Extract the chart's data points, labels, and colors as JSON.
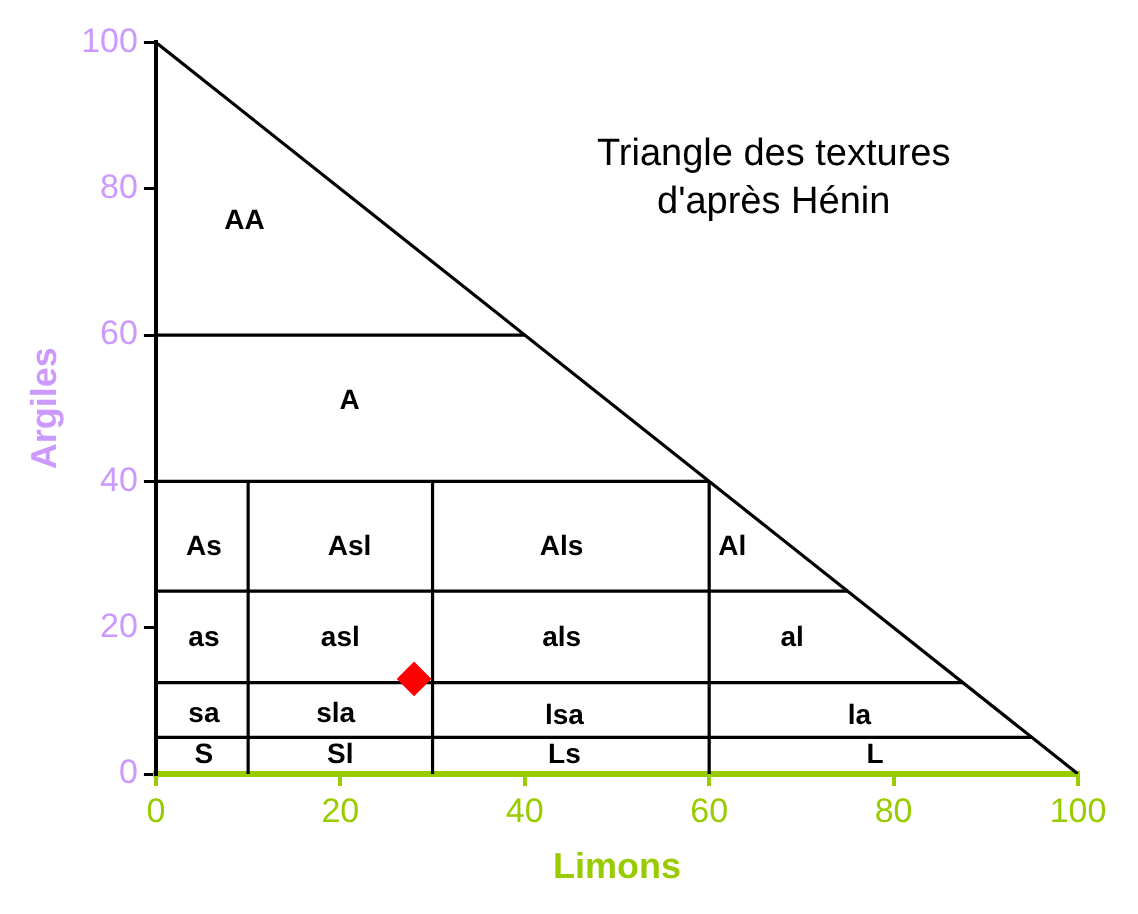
{
  "chart_data": {
    "type": "scatter",
    "title": "Triangle des textures\nd'après Hénin",
    "xlabel": "Limons",
    "ylabel": "Argiles",
    "xlim": [
      0,
      100
    ],
    "ylim": [
      0,
      100
    ],
    "xticks": [
      0,
      20,
      40,
      60,
      80,
      100
    ],
    "yticks": [
      0,
      20,
      40,
      60,
      80,
      100
    ],
    "grid": false,
    "legend": false,
    "series": [
      {
        "type": "line",
        "color": "#000000",
        "x": [
          0,
          100
        ],
        "values": [
          100,
          0
        ]
      },
      {
        "type": "line",
        "color": "#000000",
        "x": [
          0,
          40
        ],
        "values": [
          60,
          60
        ]
      },
      {
        "type": "line",
        "color": "#000000",
        "x": [
          0,
          60
        ],
        "values": [
          40,
          40
        ]
      },
      {
        "type": "line",
        "color": "#000000",
        "x": [
          0,
          75
        ],
        "values": [
          25,
          25
        ]
      },
      {
        "type": "line",
        "color": "#000000",
        "x": [
          0,
          87.5
        ],
        "values": [
          12.5,
          12.5
        ]
      },
      {
        "type": "line",
        "color": "#000000",
        "x": [
          0,
          95
        ],
        "values": [
          5,
          5
        ]
      },
      {
        "type": "line",
        "color": "#000000",
        "x": [
          10,
          10
        ],
        "values": [
          0,
          40
        ]
      },
      {
        "type": "line",
        "color": "#000000",
        "x": [
          30,
          30
        ],
        "values": [
          0,
          40
        ]
      },
      {
        "type": "line",
        "color": "#000000",
        "x": [
          60,
          60
        ],
        "values": [
          0,
          40
        ]
      },
      {
        "type": "scatter",
        "color": "#ff0000",
        "marker": "diamond",
        "x": [
          28
        ],
        "values": [
          13
        ]
      }
    ],
    "annotations": [
      "AA",
      "A",
      "As",
      "Asl",
      "Als",
      "Al",
      "as",
      "asl",
      "als",
      "al",
      "sa",
      "sla",
      "lsa",
      "la",
      "S",
      "Sl",
      "Ls",
      "L"
    ]
  }
}
